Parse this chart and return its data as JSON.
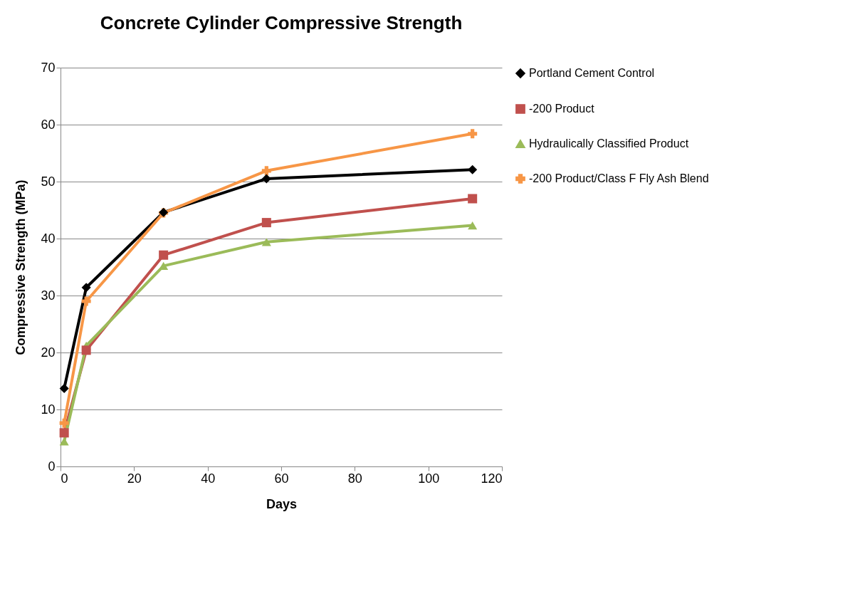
{
  "chart_data": {
    "type": "line",
    "title": "Concrete Cylinder Compressive Strength",
    "xlabel": "Days",
    "ylabel": "Compressive Strength (MPa)",
    "x": [
      1,
      7,
      28,
      56,
      112
    ],
    "series": [
      {
        "name": "Portland Cement Control",
        "color": "#000000",
        "marker": "diamond",
        "values": [
          13.7,
          31.4,
          44.6,
          50.5,
          52.1
        ]
      },
      {
        "name": "-200 Product",
        "color": "#c0504d",
        "marker": "square",
        "values": [
          5.9,
          20.4,
          37.1,
          42.8,
          47.0
        ]
      },
      {
        "name": "Hydraulically Classified Product",
        "color": "#9bbb59",
        "marker": "triangle",
        "values": [
          4.4,
          21.2,
          35.2,
          39.4,
          42.3
        ]
      },
      {
        "name": "-200 Product/Class F Fly Ash Blend",
        "color": "#f79646",
        "marker": "cross",
        "values": [
          7.6,
          29.0,
          44.5,
          51.9,
          58.4
        ]
      }
    ],
    "xlim": [
      0,
      120
    ],
    "xticks": [
      0,
      20,
      40,
      60,
      80,
      100,
      120
    ],
    "ylim": [
      0,
      70
    ],
    "yticks": [
      0,
      10,
      20,
      30,
      40,
      50,
      60,
      70
    ],
    "grid": "y",
    "legend": "right"
  }
}
